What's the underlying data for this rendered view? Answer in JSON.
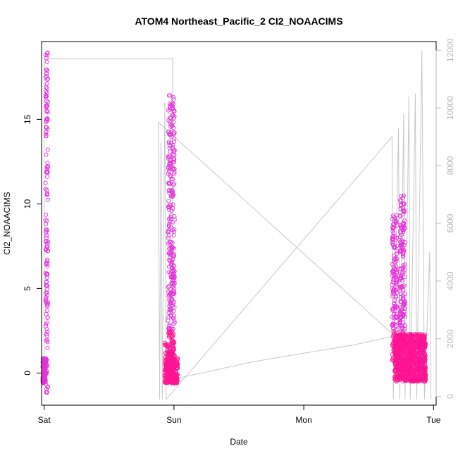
{
  "chart_data": {
    "type": "scatter",
    "title": "ATOM4 Northeast_Pacific_2 CI2_NOAACIMS",
    "xlabel": "Date",
    "ylabel": "CI2_NOAACIMS",
    "x_ticks": [
      "Sat",
      "Sun",
      "Mon",
      "Tue"
    ],
    "x_tick_positions": [
      0,
      1,
      2,
      3
    ],
    "x_range": [
      -0.02,
      3.02
    ],
    "y_ticks": [
      0,
      5,
      10,
      15
    ],
    "y_range": [
      -1.9,
      19.6
    ],
    "y2_ticks": [
      0,
      2000,
      4000,
      6000,
      8000,
      10000,
      12000
    ],
    "y2_range": [
      -300,
      12300
    ],
    "grid": false,
    "colors": {
      "marker_series": [
        "#e233d6",
        "#ff1493"
      ],
      "secondary_line": "#c8c8c8",
      "axis": "#000000",
      "secondary_axis": "#b8b8b8"
    },
    "series": [
      {
        "type": "points",
        "clusters": [
          {
            "x_center": 0.02,
            "x_spread": 0.01,
            "y_min": -1.2,
            "y_max": 19.0,
            "count": 150
          },
          {
            "x_center": 0.0,
            "x_spread": 0.012,
            "y_min": -0.6,
            "y_max": 0.9,
            "count": 90
          },
          {
            "x_center": 0.98,
            "x_spread": 0.05,
            "y_min": -0.6,
            "y_max": 0.9,
            "count": 260
          },
          {
            "x_center": 0.95,
            "x_spread": 0.02,
            "y_min": 0.5,
            "y_max": 1.9,
            "count": 25
          },
          {
            "x_center": 0.98,
            "x_spread": 0.025,
            "y_min": 1.0,
            "y_max": 16.5,
            "count": 320
          },
          {
            "x_center": 2.82,
            "x_spread": 0.12,
            "y_min": -0.5,
            "y_max": 2.3,
            "count": 900
          },
          {
            "x_center": 2.7,
            "x_spread": 0.02,
            "y_min": 0.5,
            "y_max": 9.4,
            "count": 160
          },
          {
            "x_center": 2.76,
            "x_spread": 0.02,
            "y_min": 2.0,
            "y_max": 10.5,
            "count": 160
          }
        ]
      },
      {
        "type": "line",
        "axis": "right",
        "points": [
          [
            0.0,
            600
          ],
          [
            0.0,
            11700
          ],
          [
            0.02,
            11700
          ],
          [
            0.99,
            11700
          ],
          [
            0.99,
            11750
          ],
          [
            0.99,
            11700
          ],
          [
            0.99,
            600
          ],
          [
            1.2,
            800
          ],
          [
            1.6,
            1200
          ],
          [
            2.0,
            1500
          ],
          [
            2.4,
            1800
          ],
          [
            2.7,
            2100
          ],
          [
            0.88,
            9500
          ],
          [
            0.89,
            -100
          ],
          [
            0.9,
            8800
          ],
          [
            0.91,
            -100
          ],
          [
            0.93,
            10200
          ],
          [
            0.94,
            -100
          ],
          [
            2.68,
            9000
          ],
          [
            2.69,
            -100
          ],
          [
            2.73,
            9300
          ],
          [
            2.74,
            -100
          ],
          [
            2.77,
            9800
          ],
          [
            2.78,
            -100
          ],
          [
            2.81,
            10400
          ],
          [
            2.82,
            -100
          ],
          [
            2.86,
            10500
          ],
          [
            2.87,
            -100
          ],
          [
            2.91,
            12000
          ],
          [
            2.93,
            -100
          ],
          [
            2.97,
            5000
          ],
          [
            2.98,
            -100
          ]
        ]
      }
    ]
  }
}
